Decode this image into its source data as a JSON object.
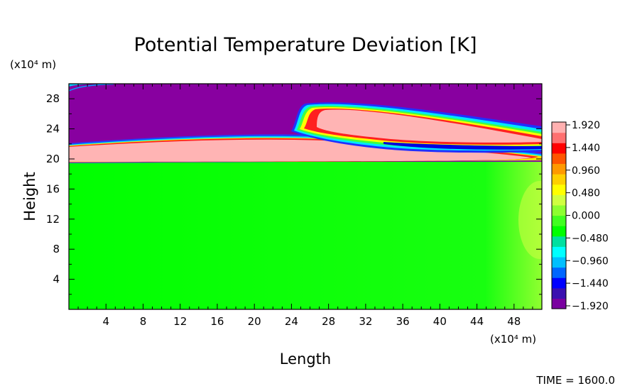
{
  "chart_data": {
    "type": "heatmap",
    "title": "Potential Temperature Deviation [K]",
    "xlabel": "Length",
    "ylabel": "Height",
    "x_unit_label": "(x10⁴ m)",
    "y_unit_label": "(x10⁴ m)",
    "x_ticks": [
      "4",
      "8",
      "12",
      "16",
      "20",
      "24",
      "28",
      "32",
      "36",
      "40",
      "44",
      "48"
    ],
    "y_ticks": [
      "4",
      "8",
      "12",
      "16",
      "20",
      "24",
      "28"
    ],
    "xlim": [
      0,
      51
    ],
    "ylim": [
      0,
      30
    ],
    "colorbar": {
      "ticks": [
        "1.920",
        "1.440",
        "0.960",
        "0.480",
        "0.000",
        "−0.480",
        "−0.960",
        "−1.440",
        "−1.920"
      ],
      "range": [
        -1.92,
        1.92
      ],
      "colors": [
        "#7a00a0",
        "#3a10b0",
        "#0000ff",
        "#0066ff",
        "#00bfff",
        "#00ffff",
        "#00e0a0",
        "#00ff00",
        "#40ff20",
        "#8cff30",
        "#d0ff40",
        "#ffff00",
        "#ffd000",
        "#ff9900",
        "#ff5500",
        "#ff0000",
        "#ff7070",
        "#ffb0b0"
      ]
    },
    "regions": [
      {
        "label": "lower layer",
        "value": 0.0,
        "color": "#00ff00"
      },
      {
        "label": "upper layer",
        "value": -1.92,
        "color": "#8800a0"
      },
      {
        "label": "warm bands",
        "value": 1.92,
        "color": "#ffb4b4"
      }
    ],
    "annotation": "TIME = 1600.0"
  }
}
